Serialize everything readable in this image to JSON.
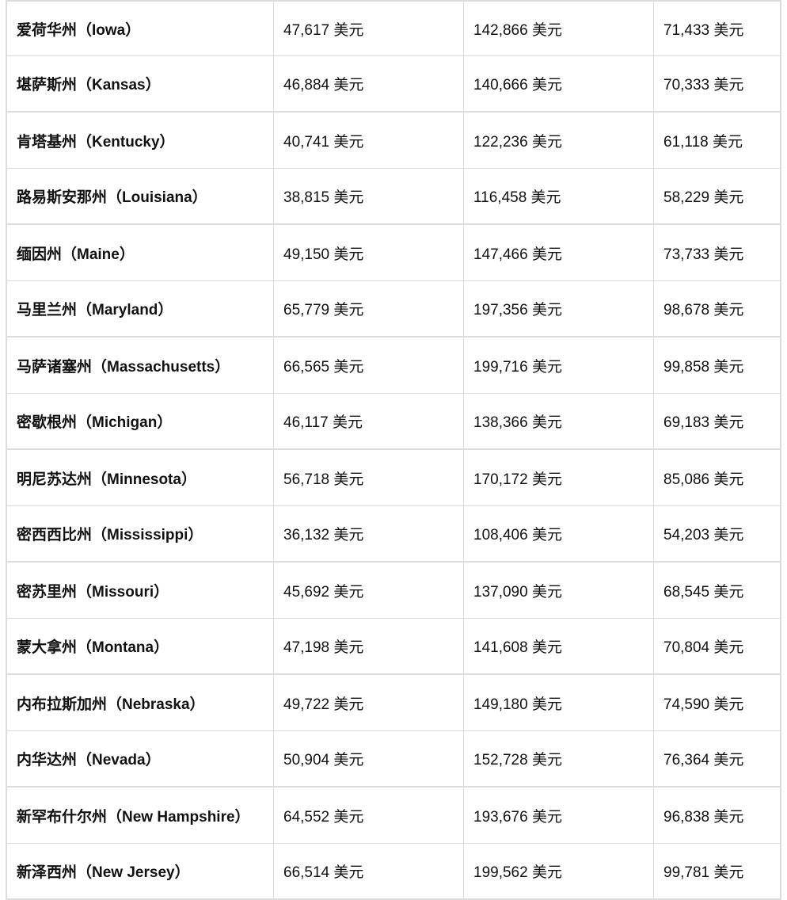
{
  "table": {
    "rows": [
      [
        "爱荷华州（Iowa）",
        "47,617 美元",
        "142,866 美元",
        "71,433 美元"
      ],
      [
        "堪萨斯州（Kansas）",
        "46,884 美元",
        "140,666 美元",
        "70,333 美元"
      ],
      [
        "肯塔基州（Kentucky）",
        "40,741 美元",
        "122,236 美元",
        "61,118 美元"
      ],
      [
        "路易斯安那州（Louisiana）",
        "38,815 美元",
        "116,458 美元",
        "58,229 美元"
      ],
      [
        "缅因州（Maine）",
        "49,150 美元",
        "147,466 美元",
        "73,733 美元"
      ],
      [
        "马里兰州（Maryland）",
        "65,779 美元",
        "197,356 美元",
        "98,678 美元"
      ],
      [
        "马萨诸塞州（Massachusetts）",
        "66,565 美元",
        "199,716 美元",
        "99,858 美元"
      ],
      [
        "密歇根州（Michigan）",
        "46,117 美元",
        "138,366 美元",
        "69,183 美元"
      ],
      [
        "明尼苏达州（Minnesota）",
        "56,718 美元",
        "170,172 美元",
        "85,086 美元"
      ],
      [
        "密西西比州（Mississippi）",
        "36,132 美元",
        "108,406 美元",
        "54,203 美元"
      ],
      [
        "密苏里州（Missouri）",
        "45,692 美元",
        "137,090 美元",
        "68,545 美元"
      ],
      [
        "蒙大拿州（Montana）",
        "47,198 美元",
        "141,608 美元",
        "70,804 美元"
      ],
      [
        "内布拉斯加州（Nebraska）",
        "49,722 美元",
        "149,180 美元",
        "74,590 美元"
      ],
      [
        "内华达州（Nevada）",
        "50,904 美元",
        "152,728 美元",
        "76,364 美元"
      ],
      [
        "新罕布什尔州（New Hampshire）",
        "64,552 美元",
        "193,676 美元",
        "96,838 美元"
      ],
      [
        "新泽西州（New Jersey）",
        "66,514 美元",
        "199,562 美元",
        "99,781 美元"
      ]
    ]
  }
}
